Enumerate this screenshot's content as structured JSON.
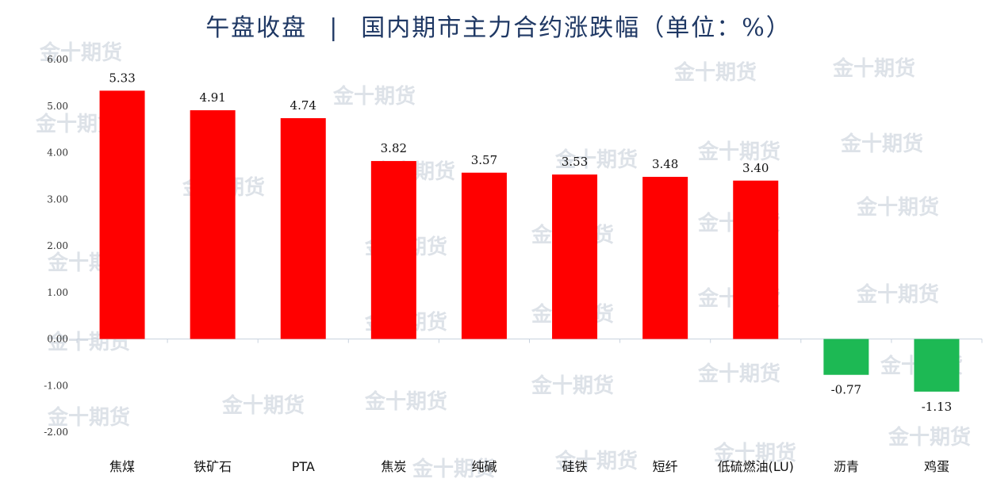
{
  "title": {
    "left": "午盘收盘",
    "separator": "|",
    "right": "国内期市主力合约涨跌幅（单位：%）"
  },
  "watermark_text": "金十期货",
  "colors": {
    "up": "#ff0000",
    "down": "#1db954",
    "axis": "#c9d3df",
    "title": "#1f3864"
  },
  "chart_data": {
    "type": "bar",
    "title": "国内期市主力合约涨跌幅（单位：%）",
    "categories": [
      "焦煤",
      "铁矿石",
      "PTA",
      "焦炭",
      "纯碱",
      "硅铁",
      "短纤",
      "低硫燃油(LU)",
      "沥青",
      "鸡蛋"
    ],
    "values": [
      5.33,
      4.91,
      4.74,
      3.82,
      3.57,
      3.53,
      3.48,
      3.4,
      -0.77,
      -1.13
    ],
    "data_labels": [
      "5.33",
      "4.91",
      "4.74",
      "3.82",
      "3.57",
      "3.53",
      "3.48",
      "3.40",
      "-0.77",
      "-1.13"
    ],
    "y_ticks": [
      "6.00",
      "5.00",
      "4.00",
      "3.00",
      "2.00",
      "1.00",
      "0.00",
      "-1.00",
      "-2.00"
    ],
    "ylim": [
      -2,
      6
    ],
    "xlabel": "",
    "ylabel": "",
    "grid": false,
    "legend": "none"
  }
}
